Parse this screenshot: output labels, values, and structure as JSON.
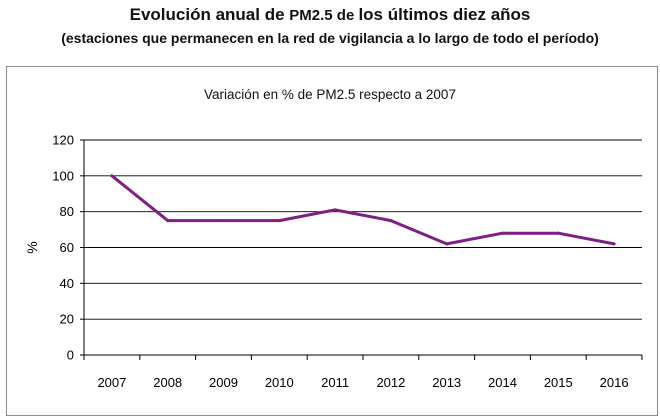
{
  "heading": {
    "line1_part1": "Evolución anual de ",
    "line1_pm": "PM2.5",
    "line1_de": " de ",
    "line1_part2": "los últimos diez años",
    "line2": "(estaciones que permanecen en la red de vigilancia a lo largo de todo el período)"
  },
  "chart_data": {
    "type": "line",
    "title": "Variación en % de PM2.5 respecto a 2007",
    "xlabel": "",
    "ylabel": "%",
    "categories": [
      "2007",
      "2008",
      "2009",
      "2010",
      "2011",
      "2012",
      "2013",
      "2014",
      "2015",
      "2016"
    ],
    "series": [
      {
        "name": "PM2.5",
        "values": [
          100,
          75,
          75,
          75,
          81,
          75,
          62,
          68,
          68,
          62
        ],
        "color": "#7f1f86"
      }
    ],
    "ylim": [
      0,
      120
    ],
    "yticks": [
      0,
      20,
      40,
      60,
      80,
      100,
      120
    ],
    "grid": true,
    "gridColor": "#000000",
    "axisColor": "#000000"
  }
}
